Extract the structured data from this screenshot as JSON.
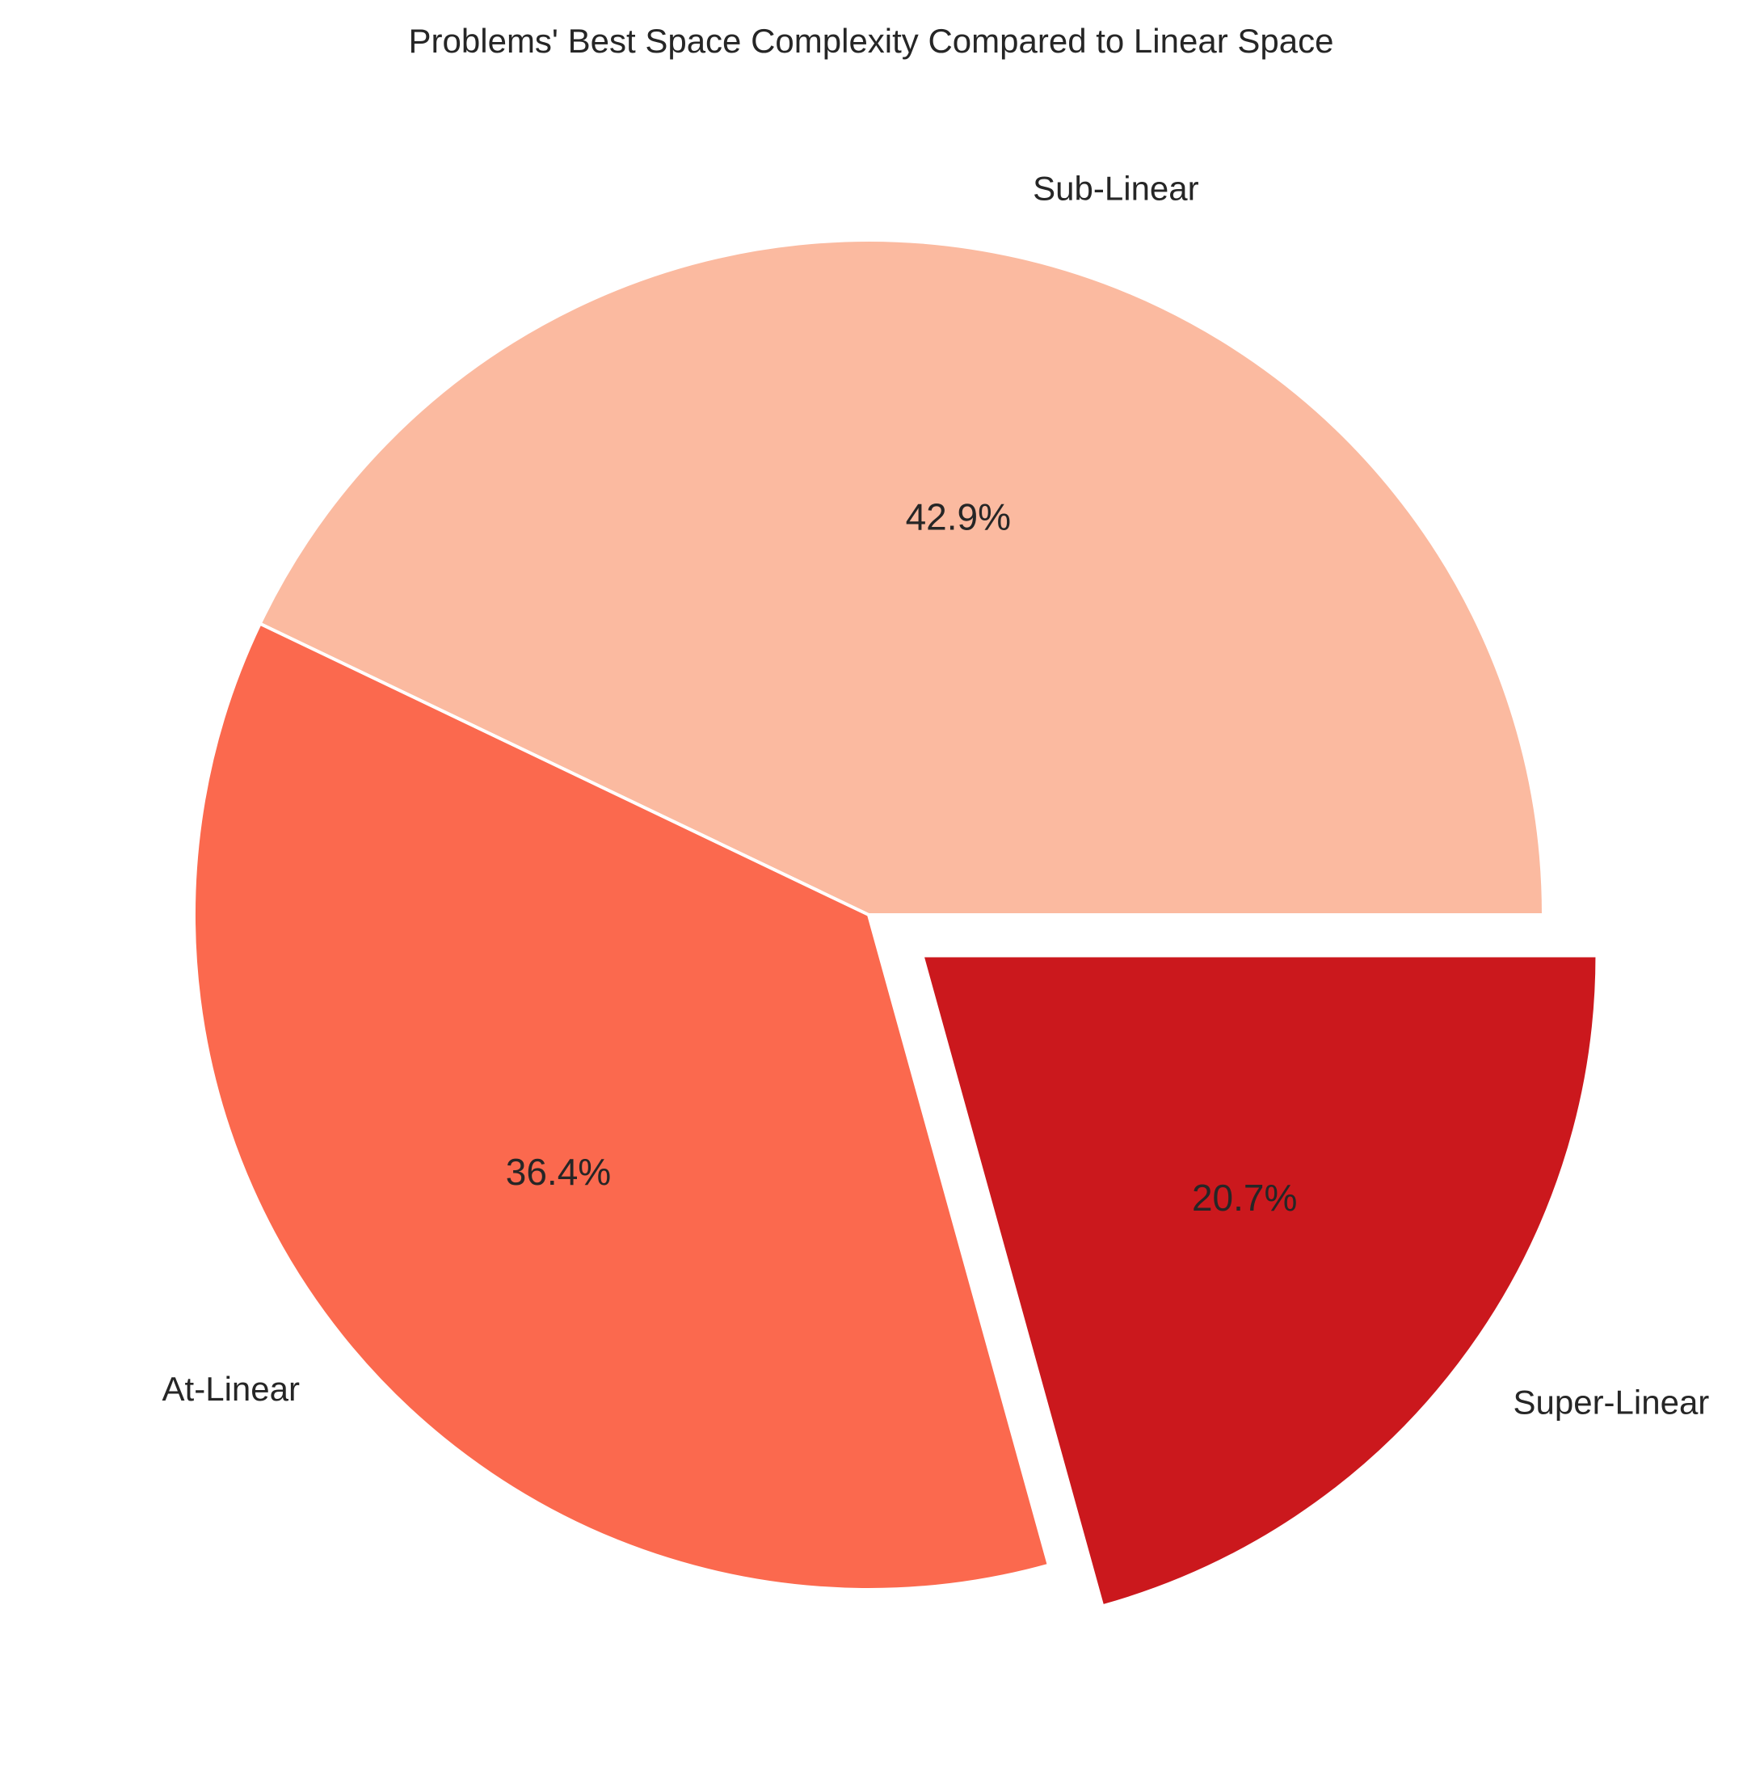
{
  "chart_data": {
    "type": "pie",
    "title": "Problems' Best Space Complexity Compared to Linear Space",
    "labels": [
      "Sub-Linear",
      "At-Linear",
      "Super-Linear"
    ],
    "values": [
      42.9,
      36.4,
      20.7
    ],
    "value_labels": [
      "42.9%",
      "36.4%",
      "20.7%"
    ],
    "colors": [
      "#fbbaa0",
      "#fb694e",
      "#cb181d"
    ],
    "exploded": [
      false,
      false,
      true
    ],
    "start_angle_deg": 0,
    "direction": "counterclockwise",
    "legend": "none",
    "slice_edge_color": "#ffffff"
  }
}
